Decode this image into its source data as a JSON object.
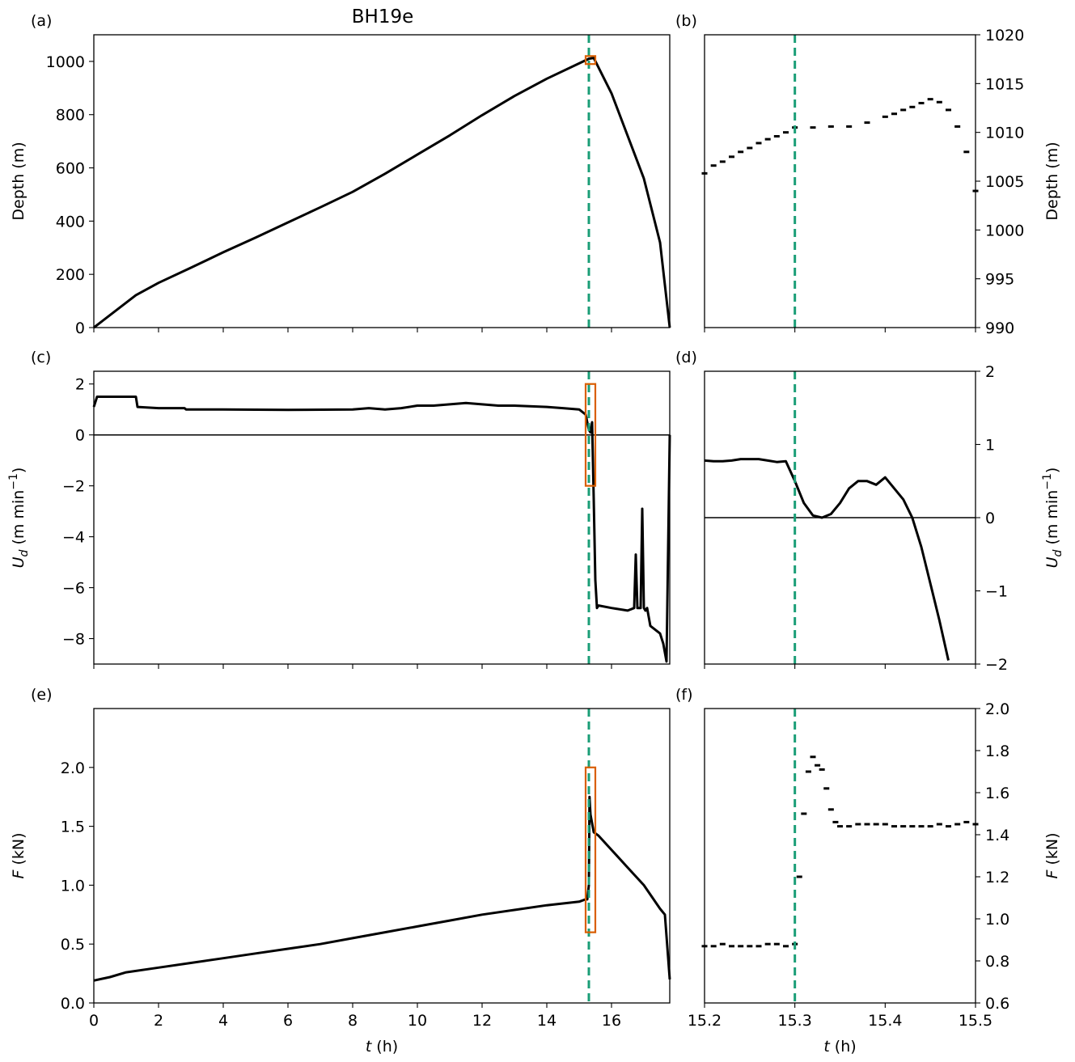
{
  "title": "BH19e",
  "colors": {
    "event_line": "#1a9e77",
    "highlight": "#d95f02",
    "data": "#000000"
  },
  "chart_data": [
    {
      "panel": "(a)",
      "type": "line",
      "title": "BH19e",
      "xlabel": "",
      "ylabel": "Depth (m)",
      "xlim": [
        0,
        17.8
      ],
      "ylim": [
        0,
        1100
      ],
      "xticks": [
        0,
        2,
        4,
        6,
        8,
        10,
        12,
        14,
        16
      ],
      "show_xticklabels": false,
      "yticks": [
        0,
        200,
        400,
        600,
        800,
        1000
      ],
      "event_t": 15.3,
      "highlight": {
        "x": [
          15.2,
          15.5
        ],
        "y": [
          990,
          1020
        ]
      },
      "series": [
        {
          "x": [
            0,
            1.3,
            2,
            3,
            4,
            5,
            6,
            7,
            8,
            9,
            10,
            11,
            12,
            13,
            14,
            15.3,
            15.45,
            16,
            17,
            17.5,
            17.8
          ],
          "y": [
            0,
            122,
            168,
            225,
            283,
            338,
            395,
            452,
            510,
            578,
            650,
            722,
            798,
            870,
            935,
            1010,
            1013,
            880,
            560,
            320,
            0
          ]
        }
      ]
    },
    {
      "panel": "(b)",
      "type": "scatter",
      "ylabel": "Depth (m)",
      "xlabel": "",
      "xlim": [
        15.2,
        15.5
      ],
      "ylim": [
        990,
        1020
      ],
      "yaxis_side": "right",
      "xticks": [
        15.2,
        15.3,
        15.4,
        15.5
      ],
      "show_xticklabels": false,
      "yticks": [
        990,
        995,
        1000,
        1005,
        1010,
        1015,
        1020
      ],
      "event_t": 15.3,
      "series": [
        {
          "x": [
            15.2,
            15.21,
            15.22,
            15.23,
            15.24,
            15.25,
            15.26,
            15.27,
            15.28,
            15.29,
            15.3,
            15.32,
            15.34,
            15.36,
            15.38,
            15.4,
            15.41,
            15.42,
            15.43,
            15.44,
            15.45,
            15.46,
            15.47,
            15.48,
            15.49,
            15.5
          ],
          "y": [
            1005.8,
            1006.6,
            1007.0,
            1007.5,
            1008.0,
            1008.4,
            1008.9,
            1009.3,
            1009.6,
            1010.0,
            1010.5,
            1010.5,
            1010.6,
            1010.6,
            1011.0,
            1011.6,
            1011.9,
            1012.3,
            1012.6,
            1013.0,
            1013.4,
            1013.1,
            1012.3,
            1010.6,
            1008.0,
            1004.0
          ]
        }
      ]
    },
    {
      "panel": "(c)",
      "type": "line",
      "ylabel": "U_d (m min^-1)",
      "xlabel": "",
      "ylabel_main": "U",
      "ylabel_sub": "d",
      "ylabel_rest": " (m min",
      "ylabel_sup": "−1",
      "ylabel_close": ")",
      "xlim": [
        0,
        17.8
      ],
      "ylim": [
        -9,
        2.5
      ],
      "xticks": [
        0,
        2,
        4,
        6,
        8,
        10,
        12,
        14,
        16
      ],
      "show_xticklabels": false,
      "yticks": [
        -8,
        -6,
        -4,
        -2,
        0,
        2
      ],
      "event_t": 15.3,
      "zero_line": true,
      "highlight": {
        "x": [
          15.2,
          15.5
        ],
        "y": [
          -2,
          2
        ]
      },
      "series": [
        {
          "x": [
            0,
            0.1,
            1.3,
            1.35,
            2,
            2.8,
            2.85,
            4,
            6,
            8,
            8.5,
            9,
            9.5,
            10,
            10.5,
            11,
            11.5,
            12,
            12.5,
            13,
            14,
            14.5,
            15.0,
            15.2,
            15.3,
            15.35,
            15.4,
            15.45,
            15.5,
            15.55,
            15.6,
            16,
            16.5,
            16.7,
            16.75,
            16.8,
            16.9,
            16.95,
            17.0,
            17.05,
            17.1,
            17.2,
            17.3,
            17.4,
            17.5,
            17.6,
            17.7,
            17.8
          ],
          "y": [
            1.1,
            1.5,
            1.5,
            1.1,
            1.05,
            1.05,
            1.0,
            1.0,
            0.98,
            1.0,
            1.05,
            1.0,
            1.05,
            1.15,
            1.15,
            1.2,
            1.25,
            1.2,
            1.15,
            1.15,
            1.1,
            1.05,
            1.0,
            0.8,
            0.2,
            0.1,
            0.5,
            -2.5,
            -5.7,
            -6.8,
            -6.7,
            -6.8,
            -6.9,
            -6.8,
            -4.7,
            -6.8,
            -6.8,
            -2.9,
            -6.8,
            -6.9,
            -6.8,
            -7.5,
            -7.6,
            -7.7,
            -7.8,
            -8.2,
            -8.9,
            0
          ]
        }
      ]
    },
    {
      "panel": "(d)",
      "type": "line",
      "ylabel": "U_d (m min^-1)",
      "xlabel": "",
      "ylabel_main": "U",
      "ylabel_sub": "d",
      "ylabel_rest": " (m min",
      "ylabel_sup": "−1",
      "ylabel_close": ")",
      "xlim": [
        15.2,
        15.5
      ],
      "ylim": [
        -2,
        2
      ],
      "yaxis_side": "right",
      "xticks": [
        15.2,
        15.3,
        15.4,
        15.5
      ],
      "show_xticklabels": false,
      "yticks": [
        -2,
        -1,
        0,
        1,
        2
      ],
      "event_t": 15.3,
      "zero_line": true,
      "series": [
        {
          "x": [
            15.2,
            15.21,
            15.22,
            15.23,
            15.24,
            15.25,
            15.26,
            15.27,
            15.28,
            15.29,
            15.3,
            15.31,
            15.32,
            15.33,
            15.34,
            15.35,
            15.36,
            15.37,
            15.38,
            15.39,
            15.4,
            15.41,
            15.42,
            15.43,
            15.44,
            15.45,
            15.46,
            15.47
          ],
          "y": [
            0.78,
            0.77,
            0.77,
            0.78,
            0.8,
            0.8,
            0.8,
            0.78,
            0.76,
            0.77,
            0.5,
            0.2,
            0.03,
            0.0,
            0.05,
            0.2,
            0.4,
            0.5,
            0.5,
            0.45,
            0.55,
            0.4,
            0.25,
            0.0,
            -0.4,
            -0.9,
            -1.4,
            -1.95
          ]
        }
      ]
    },
    {
      "panel": "(e)",
      "type": "line",
      "ylabel": "F (kN)",
      "xlabel": "t (h)",
      "ylabel_main": "F",
      "ylabel_rest": " (kN)",
      "xlabel_main": "t",
      "xlabel_rest": " (h)",
      "xlim": [
        0,
        17.8
      ],
      "ylim": [
        0,
        2.5
      ],
      "xticks": [
        0,
        2,
        4,
        6,
        8,
        10,
        12,
        14,
        16
      ],
      "show_xticklabels": true,
      "yticks": [
        0.0,
        0.5,
        1.0,
        1.5,
        2.0
      ],
      "event_t": 15.3,
      "highlight": {
        "x": [
          15.2,
          15.5
        ],
        "y": [
          0.6,
          2.0
        ]
      },
      "series": [
        {
          "x": [
            0,
            0.5,
            1,
            2,
            3,
            4,
            5,
            6,
            7,
            8,
            9,
            10,
            11,
            12,
            13,
            14,
            15.0,
            15.2,
            15.25,
            15.3,
            15.32,
            15.35,
            15.45,
            15.6,
            16,
            16.5,
            17,
            17.5,
            17.65,
            17.8
          ],
          "y": [
            0.19,
            0.22,
            0.26,
            0.3,
            0.34,
            0.38,
            0.42,
            0.46,
            0.5,
            0.55,
            0.6,
            0.65,
            0.7,
            0.75,
            0.79,
            0.83,
            0.86,
            0.88,
            0.88,
            1.0,
            1.75,
            1.6,
            1.45,
            1.42,
            1.3,
            1.15,
            1.0,
            0.8,
            0.75,
            0.2
          ]
        }
      ]
    },
    {
      "panel": "(f)",
      "type": "scatter",
      "ylabel": "F (kN)",
      "xlabel": "t (h)",
      "ylabel_main": "F",
      "ylabel_rest": " (kN)",
      "xlabel_main": "t",
      "xlabel_rest": " (h)",
      "xlim": [
        15.2,
        15.5
      ],
      "ylim": [
        0.6,
        2.0
      ],
      "yaxis_side": "right",
      "xticks": [
        15.2,
        15.3,
        15.4,
        15.5
      ],
      "show_xticklabels": true,
      "yticks": [
        0.6,
        0.8,
        1.0,
        1.2,
        1.4,
        1.6,
        1.8,
        2.0
      ],
      "event_t": 15.3,
      "series": [
        {
          "x": [
            15.2,
            15.21,
            15.22,
            15.23,
            15.24,
            15.25,
            15.26,
            15.27,
            15.28,
            15.29,
            15.3,
            15.305,
            15.31,
            15.315,
            15.32,
            15.325,
            15.33,
            15.335,
            15.34,
            15.345,
            15.35,
            15.36,
            15.37,
            15.38,
            15.39,
            15.4,
            15.41,
            15.42,
            15.43,
            15.44,
            15.45,
            15.46,
            15.47,
            15.48,
            15.49,
            15.5
          ],
          "y": [
            0.87,
            0.87,
            0.88,
            0.87,
            0.87,
            0.87,
            0.87,
            0.88,
            0.88,
            0.87,
            0.88,
            1.2,
            1.5,
            1.7,
            1.77,
            1.73,
            1.71,
            1.62,
            1.52,
            1.46,
            1.44,
            1.44,
            1.45,
            1.45,
            1.45,
            1.45,
            1.44,
            1.44,
            1.44,
            1.44,
            1.44,
            1.45,
            1.44,
            1.45,
            1.46,
            1.45
          ]
        }
      ]
    }
  ]
}
